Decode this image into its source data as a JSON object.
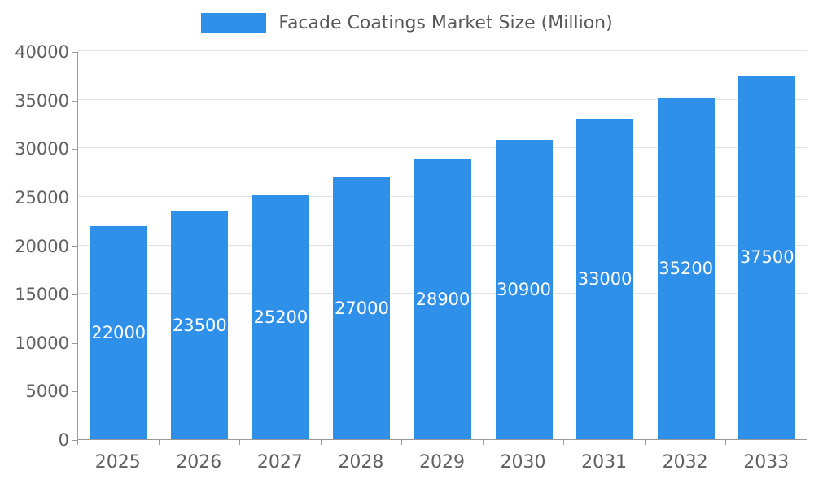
{
  "chart_data": {
    "type": "bar",
    "title": "Facade Coatings Market Size (Million)",
    "categories": [
      "2025",
      "2026",
      "2027",
      "2028",
      "2029",
      "2030",
      "2031",
      "2032",
      "2033"
    ],
    "values": [
      22000,
      23500,
      25200,
      27000,
      28900,
      30900,
      33000,
      35200,
      37500
    ],
    "xlabel": "",
    "ylabel": "",
    "ylim": [
      0,
      40000
    ],
    "y_ticks": [
      0,
      5000,
      10000,
      15000,
      20000,
      25000,
      30000,
      35000,
      40000
    ],
    "legend_position": "top",
    "grid": true,
    "bar_color": "#2E90E8",
    "value_label_color": "#ffffff",
    "title_color": "#595959",
    "axis_text_color": "#616161",
    "grid_color": "#e3e3e3",
    "axis_line_color": "#999999",
    "background_color": "#ffffff"
  }
}
